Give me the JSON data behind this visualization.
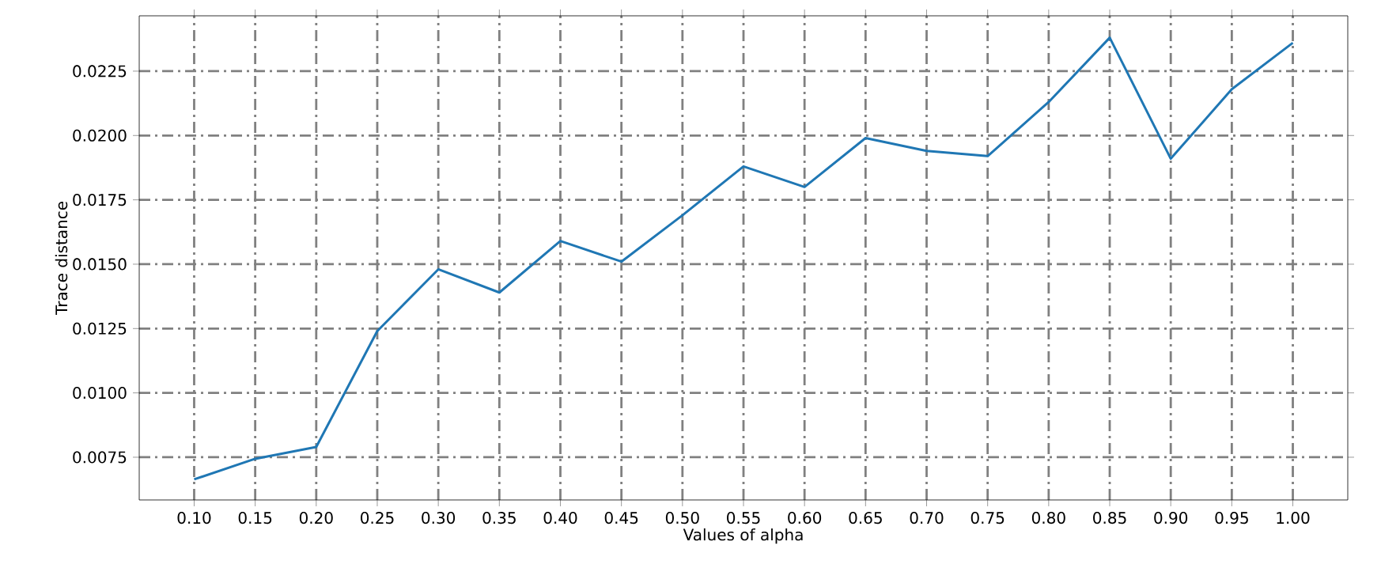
{
  "chart_data": {
    "type": "line",
    "xlabel": "Values of alpha",
    "ylabel": "Trace distance",
    "x": [
      0.1,
      0.15,
      0.2,
      0.25,
      0.3,
      0.35,
      0.4,
      0.45,
      0.5,
      0.55,
      0.6,
      0.65,
      0.7,
      0.75,
      0.8,
      0.85,
      0.9,
      0.95,
      1.0
    ],
    "series": [
      {
        "color": "#1f77b4",
        "values": [
          0.00664,
          0.00744,
          0.0079,
          0.0124,
          0.0148,
          0.0139,
          0.0159,
          0.0151,
          0.0169,
          0.0188,
          0.018,
          0.0199,
          0.0194,
          0.0192,
          0.0213,
          0.0238,
          0.0191,
          0.0218,
          0.0236
        ]
      }
    ],
    "xlim": [
      0.055,
      1.045
    ],
    "ylim": [
      0.00584,
      0.02465
    ],
    "xticks": [
      {
        "value": 0.1,
        "label": "0.10"
      },
      {
        "value": 0.15,
        "label": "0.15"
      },
      {
        "value": 0.2,
        "label": "0.20"
      },
      {
        "value": 0.25,
        "label": "0.25"
      },
      {
        "value": 0.3,
        "label": "0.30"
      },
      {
        "value": 0.35,
        "label": "0.35"
      },
      {
        "value": 0.4,
        "label": "0.40"
      },
      {
        "value": 0.45,
        "label": "0.45"
      },
      {
        "value": 0.5,
        "label": "0.50"
      },
      {
        "value": 0.55,
        "label": "0.55"
      },
      {
        "value": 0.6,
        "label": "0.60"
      },
      {
        "value": 0.65,
        "label": "0.65"
      },
      {
        "value": 0.7,
        "label": "0.70"
      },
      {
        "value": 0.75,
        "label": "0.75"
      },
      {
        "value": 0.8,
        "label": "0.80"
      },
      {
        "value": 0.85,
        "label": "0.85"
      },
      {
        "value": 0.9,
        "label": "0.90"
      },
      {
        "value": 0.95,
        "label": "0.95"
      },
      {
        "value": 1.0,
        "label": "1.00"
      }
    ],
    "yticks": [
      {
        "value": 0.0075,
        "label": "0.0075"
      },
      {
        "value": 0.01,
        "label": "0.0100"
      },
      {
        "value": 0.0125,
        "label": "0.0125"
      },
      {
        "value": 0.015,
        "label": "0.0150"
      },
      {
        "value": 0.0175,
        "label": "0.0175"
      },
      {
        "value": 0.02,
        "label": "0.0200"
      },
      {
        "value": 0.0225,
        "label": "0.0225"
      }
    ],
    "grid": true,
    "line_style": "solid",
    "marker": "none"
  }
}
